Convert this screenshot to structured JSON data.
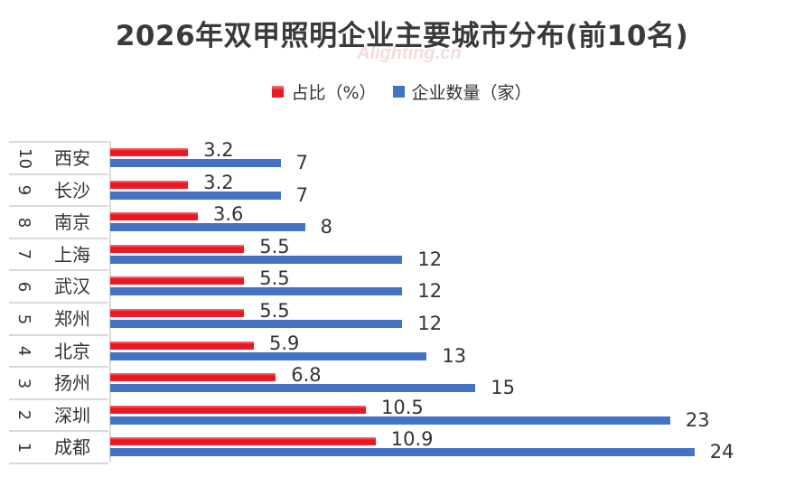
{
  "title": "2026年双甲照明企业主要城市分布(前10名)",
  "watermark": "Alighting.cn",
  "legend": [
    {
      "label": "占比（%）",
      "color": "#e8141e"
    },
    {
      "label": "企业数量（家）",
      "color": "#4472c4"
    }
  ],
  "rows": [
    {
      "rank": "10",
      "city": "西安",
      "pct": 3.2,
      "pct_label": "3.2",
      "count": 7,
      "count_label": "7"
    },
    {
      "rank": "9",
      "city": "长沙",
      "pct": 3.2,
      "pct_label": "3.2",
      "count": 7,
      "count_label": "7"
    },
    {
      "rank": "8",
      "city": "南京",
      "pct": 3.6,
      "pct_label": "3.6",
      "count": 8,
      "count_label": "8"
    },
    {
      "rank": "7",
      "city": "上海",
      "pct": 5.5,
      "pct_label": "5.5",
      "count": 12,
      "count_label": "12"
    },
    {
      "rank": "6",
      "city": "武汉",
      "pct": 5.5,
      "pct_label": "5.5",
      "count": 12,
      "count_label": "12"
    },
    {
      "rank": "5",
      "city": "郑州",
      "pct": 5.5,
      "pct_label": "5.5",
      "count": 12,
      "count_label": "12"
    },
    {
      "rank": "4",
      "city": "北京",
      "pct": 5.9,
      "pct_label": "5.9",
      "count": 13,
      "count_label": "13"
    },
    {
      "rank": "3",
      "city": "扬州",
      "pct": 6.8,
      "pct_label": "6.8",
      "count": 15,
      "count_label": "15"
    },
    {
      "rank": "2",
      "city": "深圳",
      "pct": 10.5,
      "pct_label": "10.5",
      "count": 23,
      "count_label": "23"
    },
    {
      "rank": "1",
      "city": "成都",
      "pct": 10.9,
      "pct_label": "10.9",
      "count": 24,
      "count_label": "24"
    }
  ],
  "chart_data": {
    "type": "bar",
    "orientation": "horizontal",
    "title": "2026年双甲照明企业主要城市分布(前10名)",
    "categories": [
      "成都",
      "深圳",
      "扬州",
      "北京",
      "郑州",
      "武汉",
      "上海",
      "南京",
      "长沙",
      "西安"
    ],
    "ranks": [
      1,
      2,
      3,
      4,
      5,
      6,
      7,
      8,
      9,
      10
    ],
    "series": [
      {
        "name": "占比（%）",
        "color": "#e8141e",
        "values": [
          10.9,
          10.5,
          6.8,
          5.9,
          5.5,
          5.5,
          5.5,
          3.6,
          3.2,
          3.2
        ]
      },
      {
        "name": "企业数量（家）",
        "color": "#4472c4",
        "values": [
          24,
          23,
          15,
          13,
          12,
          12,
          12,
          8,
          7,
          7
        ]
      }
    ],
    "xlabel": "",
    "ylabel": "",
    "grid": false,
    "legend_position": "top",
    "data_labels": true
  }
}
